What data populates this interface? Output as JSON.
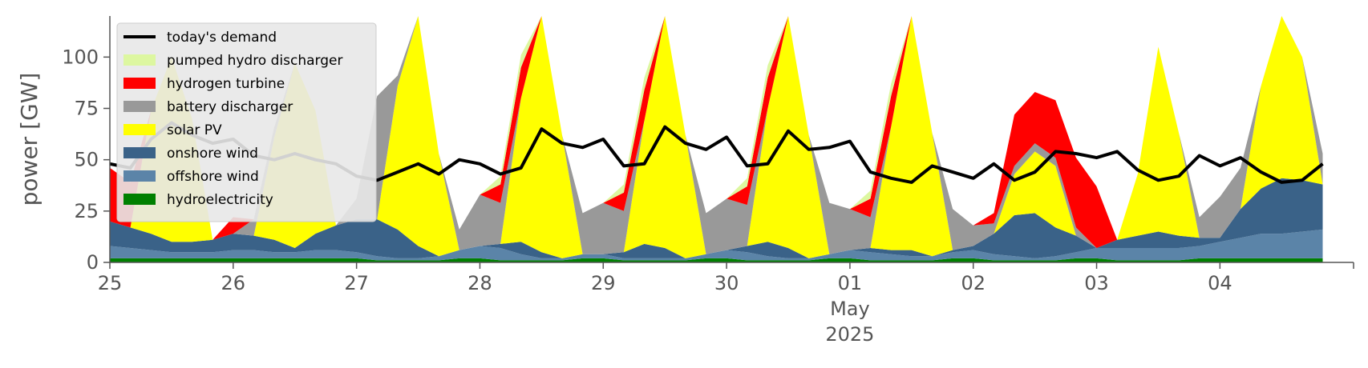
{
  "chart_data": {
    "type": "area",
    "title": "",
    "xlabel": "",
    "ylabel": "power [GW]",
    "ylim": [
      0,
      120
    ],
    "yticks": [
      0,
      25,
      50,
      75,
      100
    ],
    "x_start": "2025-04-25 00:00",
    "x_end": "2025-05-04 22:00",
    "x_step_hours": 4,
    "xticks": [
      {
        "label": "25",
        "date": "2025-04-25"
      },
      {
        "label": "26",
        "date": "2025-04-26"
      },
      {
        "label": "27",
        "date": "2025-04-27"
      },
      {
        "label": "28",
        "date": "2025-04-28"
      },
      {
        "label": "29",
        "date": "2025-04-29"
      },
      {
        "label": "30",
        "date": "2025-04-30"
      },
      {
        "label": "01",
        "date": "2025-05-01"
      },
      {
        "label": "02",
        "date": "2025-05-02"
      },
      {
        "label": "03",
        "date": "2025-05-03"
      },
      {
        "label": "04",
        "date": "2025-05-04"
      }
    ],
    "month_label": "May",
    "year_label": "2025",
    "grid": false,
    "legend_position": "top-left",
    "series": [
      {
        "name": "hydroelectricity",
        "color": "#008000",
        "values": [
          2,
          2,
          2,
          2,
          2,
          2,
          2,
          2,
          2,
          2,
          2,
          2,
          2,
          1,
          1,
          1,
          1,
          2,
          2,
          1,
          1,
          1,
          1,
          2,
          2,
          1,
          1,
          1,
          1,
          2,
          2,
          1,
          1,
          1,
          1,
          2,
          2,
          1,
          1,
          1,
          1,
          2,
          2,
          1,
          1,
          1,
          1,
          2,
          2,
          1,
          1,
          1,
          1,
          2,
          2,
          2,
          2,
          2,
          2,
          2
        ]
      },
      {
        "name": "offshore wind",
        "color": "#5b84a8",
        "values": [
          6,
          5,
          4,
          3,
          3,
          3,
          4,
          4,
          3,
          3,
          4,
          4,
          3,
          2,
          1,
          1,
          2,
          4,
          6,
          6,
          3,
          1,
          1,
          2,
          2,
          1,
          1,
          1,
          1,
          2,
          4,
          4,
          2,
          1,
          1,
          2,
          4,
          4,
          3,
          2,
          2,
          3,
          4,
          3,
          2,
          1,
          2,
          3,
          5,
          6,
          6,
          6,
          6,
          6,
          8,
          10,
          12,
          12,
          13,
          14
        ]
      },
      {
        "name": "onshore wind",
        "color": "#3a6288",
        "values": [
          12,
          10,
          8,
          5,
          5,
          6,
          8,
          7,
          6,
          2,
          8,
          12,
          16,
          18,
          14,
          6,
          0,
          0,
          0,
          2,
          6,
          3,
          0,
          0,
          0,
          3,
          7,
          5,
          0,
          0,
          0,
          3,
          7,
          5,
          0,
          0,
          0,
          2,
          2,
          3,
          0,
          1,
          2,
          10,
          20,
          22,
          14,
          8,
          0,
          4,
          6,
          8,
          6,
          4,
          2,
          14,
          22,
          27,
          25,
          22
        ]
      },
      {
        "name": "solar PV",
        "color": "#ffff00",
        "values": [
          0,
          0,
          60,
          90,
          60,
          0,
          0,
          0,
          50,
          90,
          60,
          0,
          0,
          0,
          70,
          120,
          50,
          0,
          0,
          0,
          70,
          120,
          60,
          0,
          0,
          0,
          60,
          120,
          60,
          0,
          0,
          0,
          65,
          120,
          60,
          0,
          0,
          0,
          60,
          120,
          60,
          0,
          0,
          0,
          20,
          30,
          30,
          0,
          0,
          0,
          30,
          90,
          50,
          0,
          0,
          0,
          50,
          120,
          60,
          0
        ]
      },
      {
        "name": "battery discharger",
        "color": "#999999",
        "values": [
          0,
          0,
          0,
          0,
          0,
          0,
          0,
          8,
          5,
          0,
          0,
          0,
          10,
          60,
          5,
          0,
          0,
          10,
          25,
          20,
          0,
          0,
          0,
          20,
          25,
          20,
          0,
          0,
          0,
          20,
          25,
          20,
          0,
          0,
          0,
          25,
          20,
          15,
          0,
          0,
          0,
          20,
          10,
          5,
          4,
          4,
          4,
          4,
          0,
          0,
          0,
          0,
          0,
          10,
          20,
          20,
          0,
          0,
          0,
          15
        ]
      },
      {
        "name": "hydrogen turbine",
        "color": "#ff0000",
        "values": [
          26,
          22,
          0,
          0,
          0,
          0,
          8,
          0,
          0,
          0,
          0,
          0,
          0,
          0,
          0,
          0,
          0,
          0,
          0,
          9,
          15,
          0,
          0,
          0,
          0,
          9,
          15,
          0,
          0,
          0,
          0,
          9,
          15,
          0,
          0,
          0,
          0,
          9,
          15,
          0,
          0,
          0,
          0,
          5,
          25,
          25,
          28,
          34,
          30,
          0,
          0,
          0,
          0,
          0,
          0,
          0,
          0,
          0,
          0,
          0
        ]
      },
      {
        "name": "pumped hydro discharger",
        "color": "#ddf7a0",
        "values": [
          0,
          0,
          0,
          0,
          0,
          0,
          0,
          0,
          0,
          0,
          0,
          0,
          0,
          0,
          0,
          0,
          0,
          0,
          0,
          4,
          6,
          0,
          0,
          0,
          0,
          4,
          6,
          0,
          0,
          0,
          0,
          4,
          6,
          0,
          0,
          0,
          0,
          4,
          6,
          0,
          0,
          0,
          0,
          0,
          0,
          0,
          0,
          0,
          0,
          0,
          0,
          0,
          0,
          0,
          0,
          0,
          0,
          0,
          0,
          0
        ]
      }
    ],
    "lines": [
      {
        "name": "today's demand",
        "color": "#000000",
        "values": [
          48,
          46,
          60,
          68,
          62,
          58,
          60,
          52,
          50,
          53,
          50,
          48,
          42,
          40,
          44,
          48,
          43,
          50,
          48,
          43,
          46,
          65,
          58,
          56,
          60,
          47,
          48,
          66,
          58,
          55,
          61,
          47,
          48,
          64,
          55,
          56,
          59,
          44,
          41,
          39,
          47,
          44,
          41,
          48,
          40,
          44,
          54,
          53,
          51,
          54,
          45,
          40,
          42,
          52,
          47,
          51,
          44,
          39,
          40,
          48
        ]
      }
    ]
  }
}
